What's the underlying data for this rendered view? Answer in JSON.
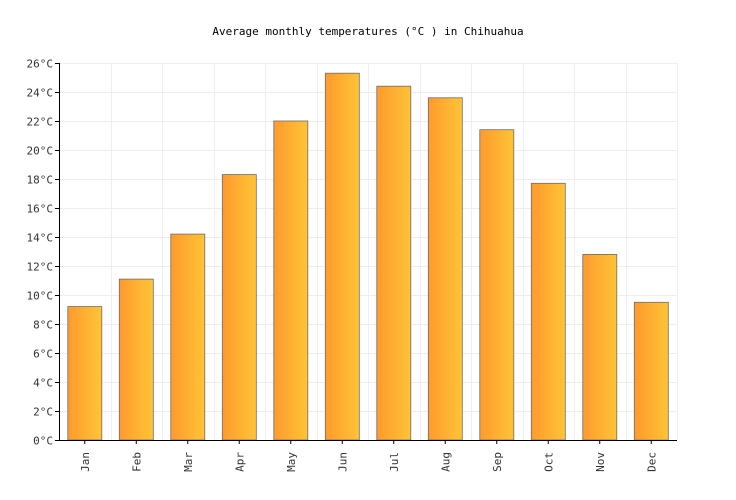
{
  "chart_data": {
    "type": "bar",
    "title": "Average monthly temperatures (°C ) in Chihuahua",
    "xlabel": "",
    "ylabel": "",
    "categories": [
      "Jan",
      "Feb",
      "Mar",
      "Apr",
      "May",
      "Jun",
      "Jul",
      "Aug",
      "Sep",
      "Oct",
      "Nov",
      "Dec"
    ],
    "values": [
      9.2,
      11.1,
      14.2,
      18.3,
      22.0,
      25.3,
      24.4,
      23.6,
      21.4,
      17.7,
      12.8,
      9.5
    ],
    "ylim": [
      0,
      26
    ],
    "yticks": [
      0,
      2,
      4,
      6,
      8,
      10,
      12,
      14,
      16,
      18,
      20,
      22,
      24,
      26
    ],
    "ytick_labels": [
      "0°C",
      "2°C",
      "4°C",
      "6°C",
      "8°C",
      "10°C",
      "12°C",
      "14°C",
      "16°C",
      "18°C",
      "20°C",
      "22°C",
      "24°C",
      "26°C"
    ],
    "grid": true,
    "legend": "none",
    "bar_gradient": [
      "#ff9a2e",
      "#ffc436"
    ],
    "bar_stroke": "#6b6b6b",
    "grid_color": "#eeeeee"
  }
}
